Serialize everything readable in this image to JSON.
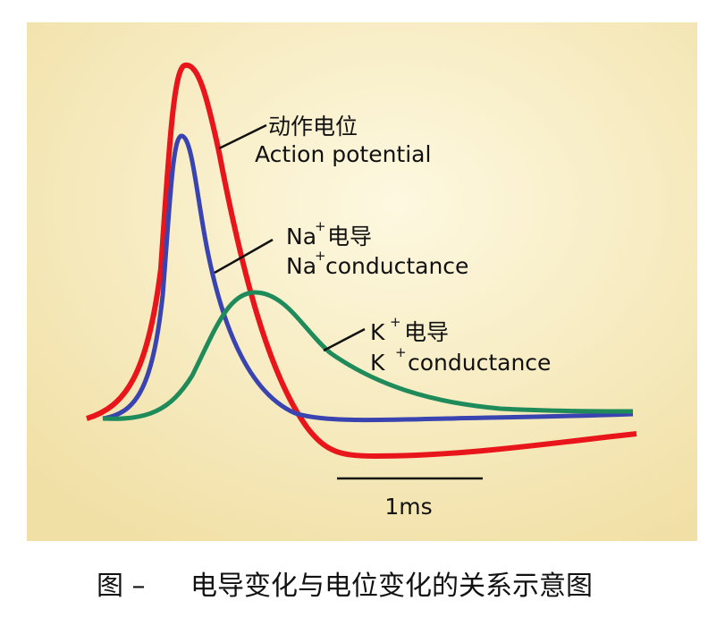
{
  "labels": {
    "action_potential_cn": "动作电位",
    "action_potential_en": "Action potential",
    "na_symbol": "Na",
    "na_plus": "+",
    "na_cn": "电导",
    "na_symbol_2": "Na",
    "na_plus_2": "+",
    "na_en": "conductance",
    "k_symbol": "K",
    "k_plus": "+",
    "k_cn": "电导",
    "k_symbol_2": "K",
    "k_plus_2": "+",
    "k_en": "conductance",
    "scale": "1ms"
  },
  "caption": {
    "figure": "图 –",
    "text": "电导变化与电位变化的关系示意图"
  }
}
